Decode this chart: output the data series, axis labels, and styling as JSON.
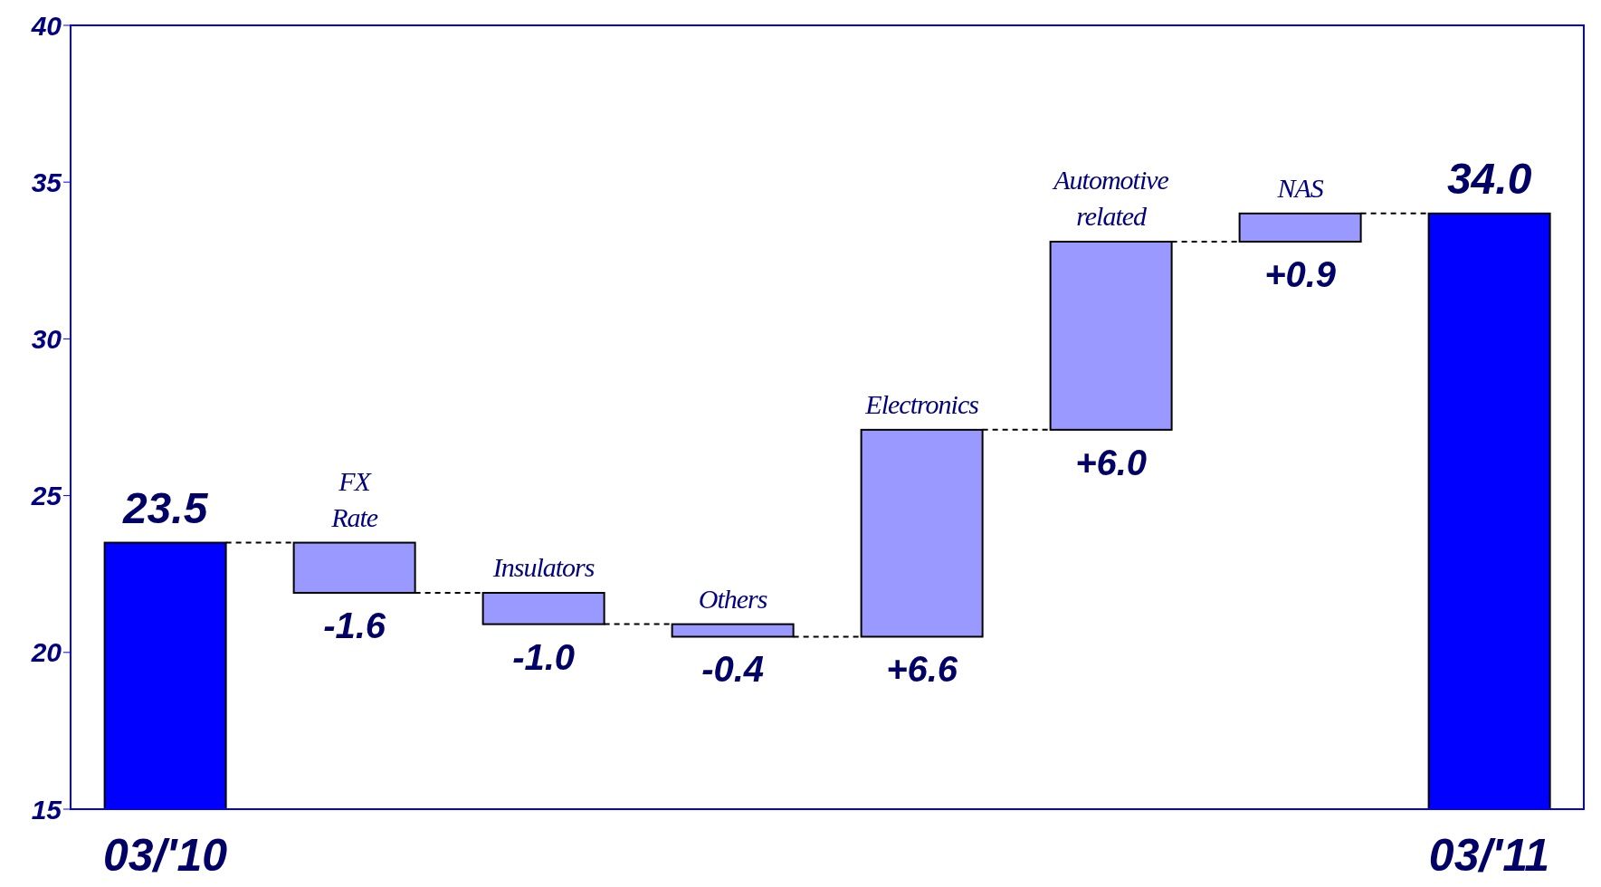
{
  "chart_data": {
    "type": "bar",
    "categories": [
      "03/'10",
      "FX Rate",
      "Insulators",
      "Others",
      "Electronics",
      "Automotive related",
      "NAS",
      "03/'11"
    ],
    "values": [
      23.5,
      -1.6,
      -1.0,
      -0.4,
      6.6,
      6.0,
      0.9,
      34.0
    ],
    "base": [
      0,
      23.5,
      21.9,
      20.9,
      20.5,
      27.1,
      33.1,
      0
    ],
    "colors": [
      "#0000ff",
      "#9999ff",
      "#9999ff",
      "#9999ff",
      "#9999ff",
      "#9999ff",
      "#9999ff",
      "#0000ff"
    ],
    "value_labels": [
      "23.5",
      "-1.6",
      "-1.0",
      "-0.4",
      "+6.6",
      "+6.0",
      "+0.9",
      "34.0"
    ],
    "ylim": [
      15,
      40
    ],
    "yticks": [
      15,
      20,
      25,
      30,
      35,
      40
    ],
    "grid": false
  }
}
